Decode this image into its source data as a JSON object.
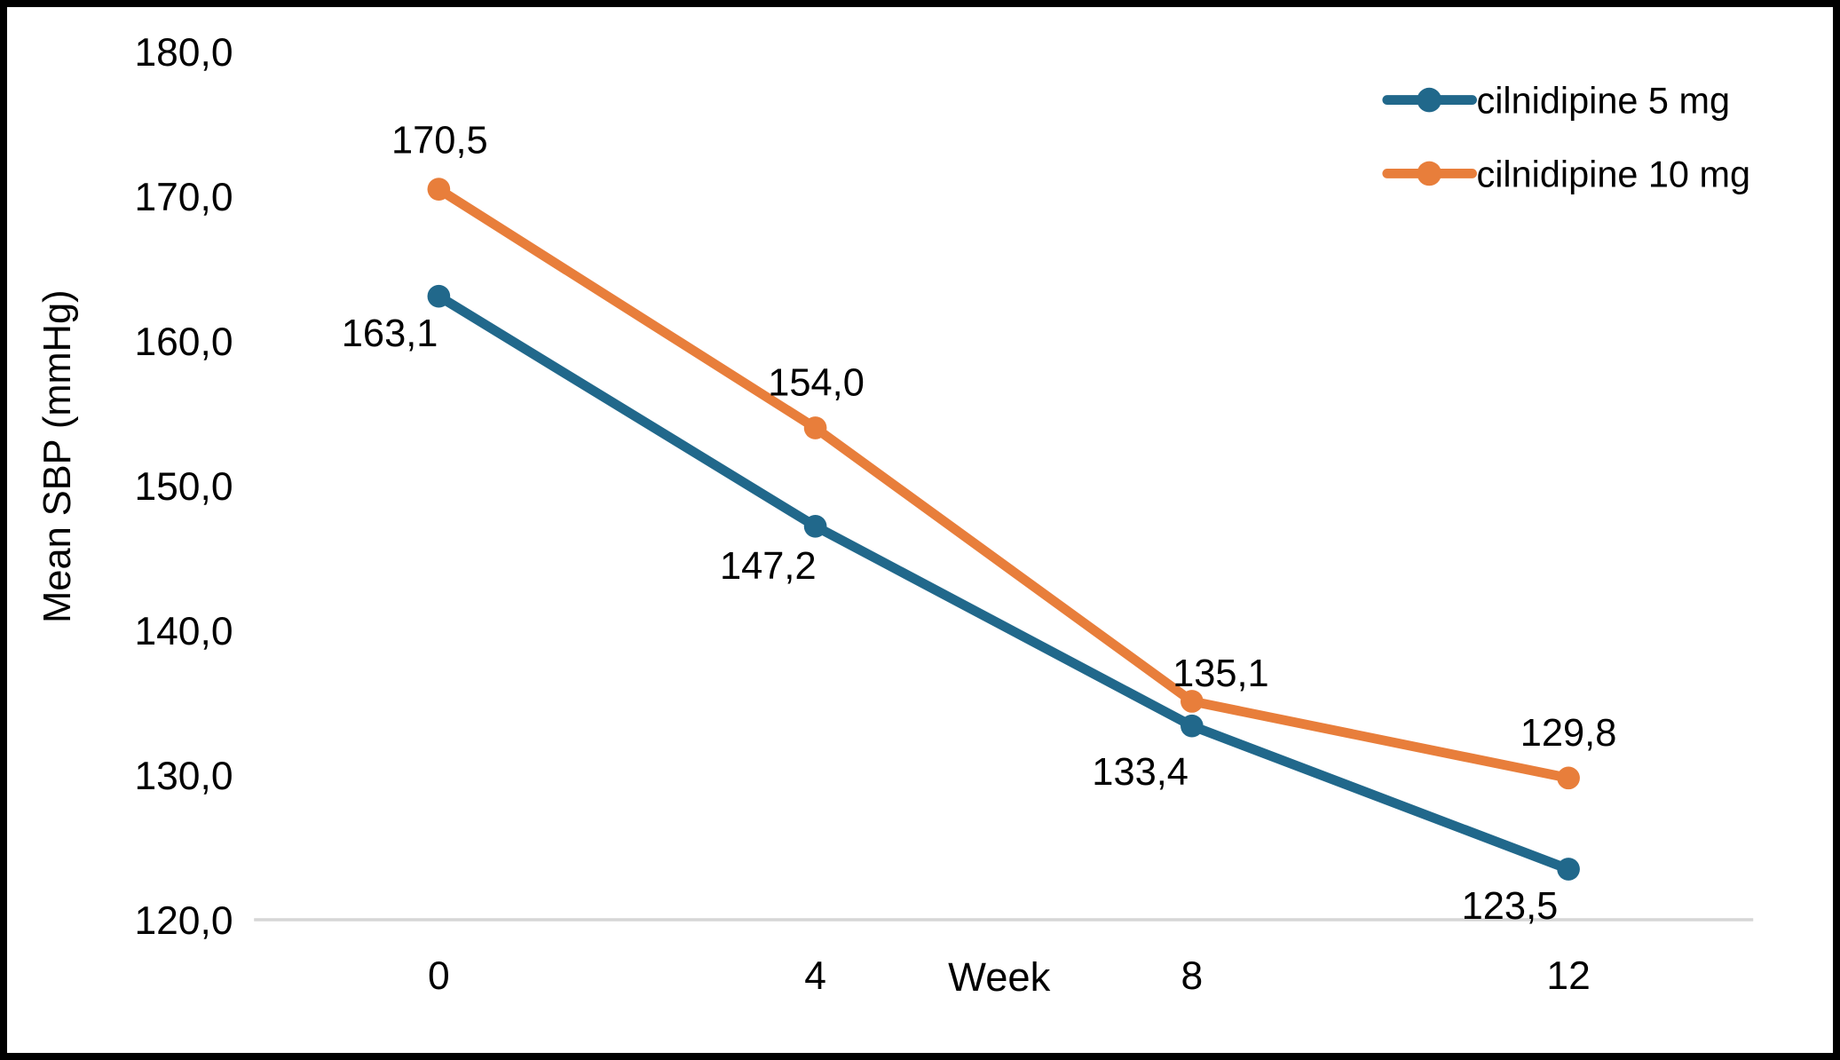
{
  "chart_data": {
    "type": "line",
    "xlabel": "Week",
    "ylabel": "Mean SBP (mmHg)",
    "x": [
      "0",
      "4",
      "8",
      "12"
    ],
    "x_numeric": [
      0,
      4,
      8,
      12
    ],
    "ylim": [
      120,
      180
    ],
    "ytick_step": 10,
    "ytick_labels": [
      "180,0",
      "170,0",
      "160,0",
      "150,0",
      "140,0",
      "130,0",
      "120,0"
    ],
    "grid": false,
    "legend_position": "top-right",
    "series": [
      {
        "name": "cilnidipine 5 mg",
        "color": "#21688B",
        "values": [
          163.1,
          147.2,
          133.4,
          123.5
        ],
        "value_labels": [
          "163,1",
          "147,2",
          "133,4",
          "123,5"
        ]
      },
      {
        "name": "cilnidipine 10 mg",
        "color": "#E87E3B",
        "values": [
          170.5,
          154.0,
          135.1,
          129.8
        ],
        "value_labels": [
          "170,5",
          "154,0",
          "135,1",
          "129,8"
        ]
      }
    ]
  },
  "colors": {
    "axis_line": "#D6D6D6",
    "text": "#000000",
    "frame_border": "#000000",
    "background": "#FFFFFF"
  }
}
